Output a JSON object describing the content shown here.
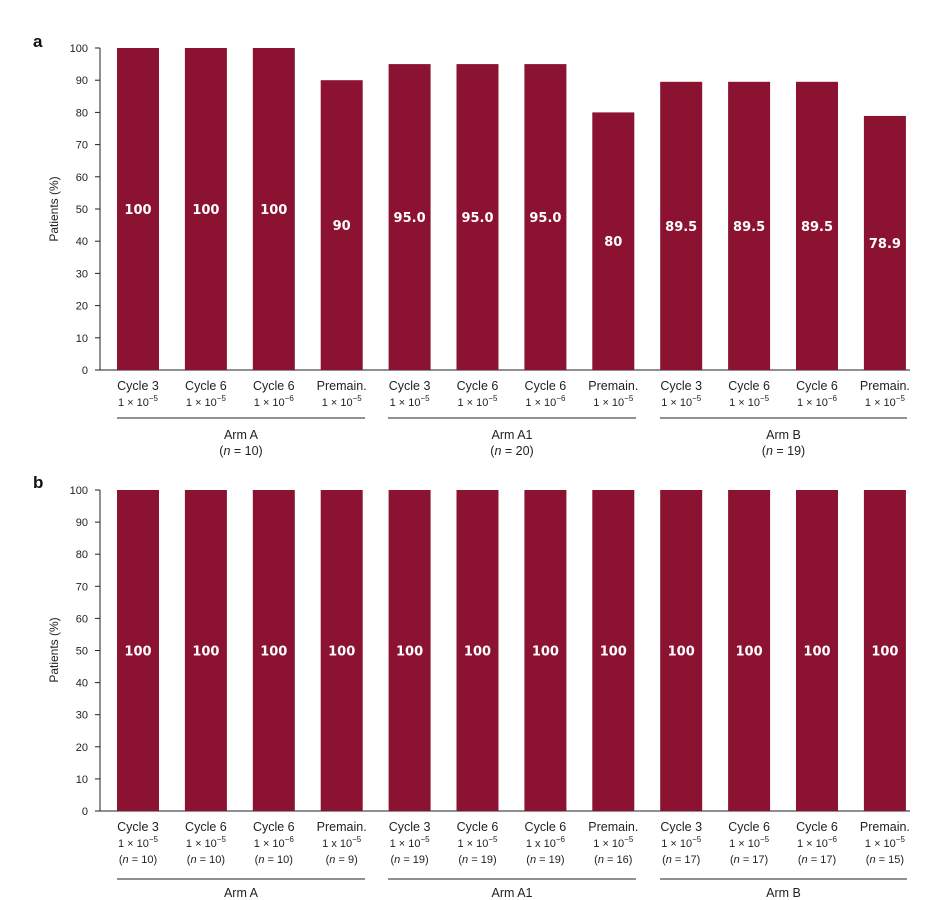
{
  "colors": {
    "bar": "#8b1230",
    "axis": "#222222",
    "value_text": "#ffffff"
  },
  "chart_data": [
    {
      "panel": "a",
      "type": "bar",
      "ylabel": "Patients (%)",
      "ylim": [
        0,
        100
      ],
      "yticks": [
        0,
        10,
        20,
        30,
        40,
        50,
        60,
        70,
        80,
        90,
        100
      ],
      "grid": false,
      "bars": [
        {
          "line1": "Cycle 3",
          "line2": "1 × 10",
          "exp": "−5",
          "line3": "",
          "value": 100,
          "label": "100"
        },
        {
          "line1": "Cycle 6",
          "line2": "1 × 10",
          "exp": "−5",
          "line3": "",
          "value": 100,
          "label": "100"
        },
        {
          "line1": "Cycle 6",
          "line2": "1 × 10",
          "exp": "−6",
          "line3": "",
          "value": 100,
          "label": "100"
        },
        {
          "line1": "Premain.",
          "line2": "1 × 10",
          "exp": "−5",
          "line3": "",
          "value": 90,
          "label": "90"
        },
        {
          "line1": "Cycle 3",
          "line2": "1 × 10",
          "exp": "−5",
          "line3": "",
          "value": 95.0,
          "label": "95.0"
        },
        {
          "line1": "Cycle 6",
          "line2": "1 × 10",
          "exp": "−5",
          "line3": "",
          "value": 95.0,
          "label": "95.0"
        },
        {
          "line1": "Cycle 6",
          "line2": "1 × 10",
          "exp": "−6",
          "line3": "",
          "value": 95.0,
          "label": "95.0"
        },
        {
          "line1": "Premain.",
          "line2": "1 × 10",
          "exp": "−5",
          "line3": "",
          "value": 80,
          "label": "80"
        },
        {
          "line1": "Cycle 3",
          "line2": "1 × 10",
          "exp": "−5",
          "line3": "",
          "value": 89.5,
          "label": "89.5"
        },
        {
          "line1": "Cycle 6",
          "line2": "1 × 10",
          "exp": "−5",
          "line3": "",
          "value": 89.5,
          "label": "89.5"
        },
        {
          "line1": "Cycle 6",
          "line2": "1 × 10",
          "exp": "−6",
          "line3": "",
          "value": 89.5,
          "label": "89.5"
        },
        {
          "line1": "Premain.",
          "line2": "1 × 10",
          "exp": "−5",
          "line3": "",
          "value": 78.9,
          "label": "78.9"
        }
      ],
      "groups": [
        {
          "name": "Arm A",
          "n": "10"
        },
        {
          "name": "Arm A1",
          "n": "20"
        },
        {
          "name": "Arm B",
          "n": "19"
        }
      ]
    },
    {
      "panel": "b",
      "type": "bar",
      "ylabel": "Patients (%)",
      "ylim": [
        0,
        100
      ],
      "yticks": [
        0,
        10,
        20,
        30,
        40,
        50,
        60,
        70,
        80,
        90,
        100
      ],
      "grid": false,
      "bars": [
        {
          "line1": "Cycle 3",
          "line2": "1 × 10",
          "exp": "−5",
          "line3": "10",
          "value": 100,
          "label": "100"
        },
        {
          "line1": "Cycle 6",
          "line2": "1 × 10",
          "exp": "−5",
          "line3": "10",
          "value": 100,
          "label": "100"
        },
        {
          "line1": "Cycle 6",
          "line2": "1 × 10",
          "exp": "−6",
          "line3": "10",
          "value": 100,
          "label": "100"
        },
        {
          "line1": "Premain.",
          "line2": "1 x 10",
          "exp": "−5",
          "line3": "9",
          "value": 100,
          "label": "100"
        },
        {
          "line1": "Cycle 3",
          "line2": "1 × 10",
          "exp": "−5",
          "line3": "19",
          "value": 100,
          "label": "100"
        },
        {
          "line1": "Cycle 6",
          "line2": "1 × 10",
          "exp": "−5",
          "line3": "19",
          "value": 100,
          "label": "100"
        },
        {
          "line1": "Cycle 6",
          "line2": "1 x 10",
          "exp": "−6",
          "line3": "19",
          "value": 100,
          "label": "100"
        },
        {
          "line1": "Premain.",
          "line2": "1 × 10",
          "exp": "−5",
          "line3": "16",
          "value": 100,
          "label": "100"
        },
        {
          "line1": "Cycle 3",
          "line2": "1 × 10",
          "exp": "−5",
          "line3": "17",
          "value": 100,
          "label": "100"
        },
        {
          "line1": "Cycle 6",
          "line2": "1 × 10",
          "exp": "−5",
          "line3": "17",
          "value": 100,
          "label": "100"
        },
        {
          "line1": "Cycle 6",
          "line2": "1 × 10",
          "exp": "−6",
          "line3": "17",
          "value": 100,
          "label": "100"
        },
        {
          "line1": "Premain.",
          "line2": "1 × 10",
          "exp": "−5",
          "line3": "15",
          "value": 100,
          "label": "100"
        }
      ],
      "groups": [
        {
          "name": "Arm A",
          "n": ""
        },
        {
          "name": "Arm A1",
          "n": ""
        },
        {
          "name": "Arm B",
          "n": ""
        }
      ]
    }
  ]
}
